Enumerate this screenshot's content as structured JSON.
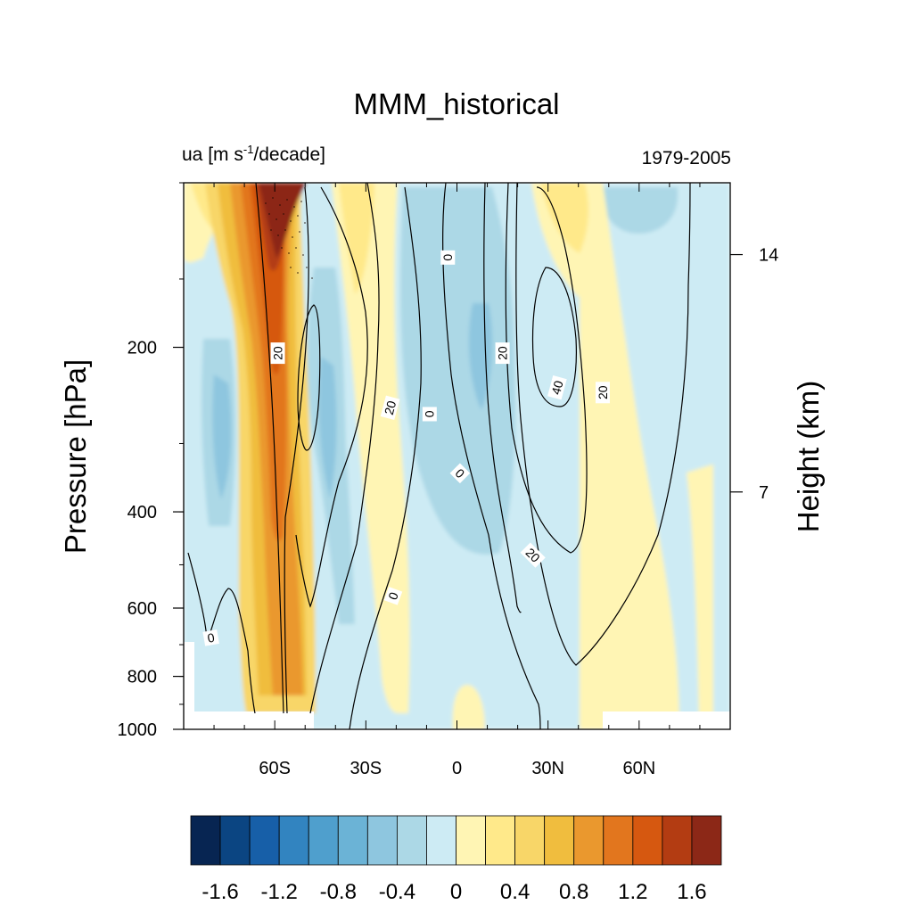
{
  "chart_data": {
    "type": "heatmap",
    "title": "MMM_historical",
    "subtitle_left": {
      "base": "ua [m s",
      "superscript": "-1",
      "tail": "/decade]"
    },
    "subtitle_right": "1979-2005",
    "ylabel_left": "Pressure [hPa]",
    "ylabel_right": "Height (km)",
    "x_ticks": [
      {
        "value": -60,
        "label": "60S"
      },
      {
        "value": -30,
        "label": "30S"
      },
      {
        "value": 0,
        "label": "0"
      },
      {
        "value": 30,
        "label": "30N"
      },
      {
        "value": 60,
        "label": "60N"
      }
    ],
    "xlim": [
      -90,
      90
    ],
    "y_left_ticks": [
      {
        "value": 200,
        "label": "200"
      },
      {
        "value": 400,
        "label": "400"
      },
      {
        "value": 600,
        "label": "600"
      },
      {
        "value": 800,
        "label": "800"
      },
      {
        "value": 1000,
        "label": "1000"
      }
    ],
    "y_right_ticks": [
      {
        "value": 14,
        "label": "14"
      },
      {
        "value": 7,
        "label": "7"
      }
    ],
    "ylim": [
      1000,
      100
    ],
    "yscale": "log",
    "colorbar": {
      "levels": [
        -1.8,
        -1.6,
        -1.4,
        -1.2,
        -1.0,
        -0.8,
        -0.6,
        -0.4,
        -0.2,
        0,
        0.2,
        0.4,
        0.6,
        0.8,
        1.0,
        1.2,
        1.4,
        1.6,
        1.8
      ],
      "labels": [
        {
          "value": -1.6,
          "label": "-1.6"
        },
        {
          "value": -1.2,
          "label": "-1.2"
        },
        {
          "value": -0.8,
          "label": "-0.8"
        },
        {
          "value": -0.4,
          "label": "-0.4"
        },
        {
          "value": 0,
          "label": "0"
        },
        {
          "value": 0.4,
          "label": "0.4"
        },
        {
          "value": 0.8,
          "label": "0.8"
        },
        {
          "value": 1.2,
          "label": "1.2"
        },
        {
          "value": 1.6,
          "label": "1.6"
        }
      ],
      "colors": [
        "#072552",
        "#0b4582",
        "#175fa8",
        "#3284c0",
        "#4f9fcd",
        "#6bb3d6",
        "#8ec6df",
        "#acd8e6",
        "#cdebf4",
        "#fff5b4",
        "#ffe98a",
        "#f8d668",
        "#f0bd3e",
        "#ea982e",
        "#e2761e",
        "#d65810",
        "#b33c12",
        "#8c2817"
      ]
    },
    "contour_labels": [
      {
        "lat": -59,
        "p": 205,
        "text": "20",
        "angle": -90
      },
      {
        "lat": -22,
        "p": 258,
        "text": "20",
        "angle": -75
      },
      {
        "lat": -3,
        "p": 137,
        "text": "0",
        "angle": 90
      },
      {
        "lat": -9,
        "p": 265,
        "text": "0",
        "angle": 90
      },
      {
        "lat": 1,
        "p": 340,
        "text": "0",
        "angle": 45
      },
      {
        "lat": 15,
        "p": 205,
        "text": "20",
        "angle": -90
      },
      {
        "lat": 33,
        "p": 237,
        "text": "40",
        "angle": -75
      },
      {
        "lat": 48,
        "p": 242,
        "text": "20",
        "angle": -90
      },
      {
        "lat": 25,
        "p": 480,
        "text": "20",
        "angle": 45
      },
      {
        "lat": -21,
        "p": 570,
        "text": "0",
        "angle": -70
      },
      {
        "lat": -81,
        "p": 680,
        "text": "0",
        "angle": -10
      }
    ]
  }
}
